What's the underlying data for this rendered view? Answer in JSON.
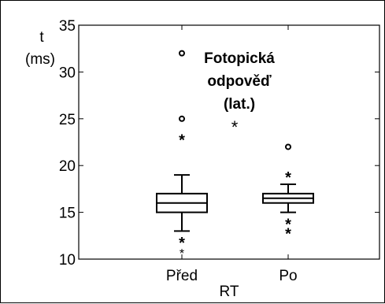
{
  "chart_data": {
    "type": "box",
    "title": "Fotopická\nodpověď\n(lat.)",
    "significance_marker": "*",
    "ylabel": "t\n(ms)",
    "xlabel": "RT",
    "ylim": [
      10,
      35
    ],
    "yticks": [
      10,
      15,
      20,
      25,
      30,
      35
    ],
    "grid": false,
    "categories": [
      "Před",
      "Po"
    ],
    "boxes": [
      {
        "category": "Před",
        "whisker_low": 13,
        "q1": 15,
        "median": 16,
        "q3": 17,
        "whisker_high": 19,
        "outliers_circle": [
          25,
          32
        ],
        "outliers_star": [
          23,
          12,
          11
        ]
      },
      {
        "category": "Po",
        "whisker_low": 15,
        "q1": 16,
        "median": 16.5,
        "q3": 17,
        "whisker_high": 18,
        "outliers_circle": [
          22
        ],
        "outliers_star": [
          19,
          14,
          13
        ]
      }
    ]
  }
}
